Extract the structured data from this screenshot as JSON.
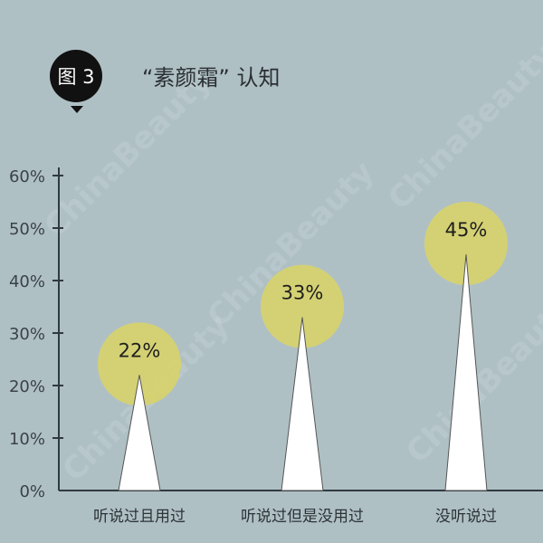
{
  "header": {
    "badge": "图 3",
    "title": "“素颜霜” 认知"
  },
  "watermark": "ChinaBeauty",
  "chart_data": {
    "type": "bar",
    "title": "“素颜霜” 认知",
    "categories": [
      "听说过且用过",
      "听说过但是没用过",
      "没听说过"
    ],
    "values": [
      22,
      33,
      45
    ],
    "data_labels": [
      "22%",
      "33%",
      "45%"
    ],
    "ylim": [
      0,
      60
    ],
    "yticks": [
      0,
      10,
      20,
      30,
      40,
      50,
      60
    ],
    "ytick_labels": [
      "0%",
      "10%",
      "20%",
      "30%",
      "40%",
      "50%",
      "60%"
    ],
    "xlabel": "",
    "ylabel": "",
    "grid": false,
    "colors": {
      "background": "#afc0c5",
      "bar": "#ffffff",
      "highlight": "#d8d36a",
      "axis": "#2f3a3f"
    }
  }
}
